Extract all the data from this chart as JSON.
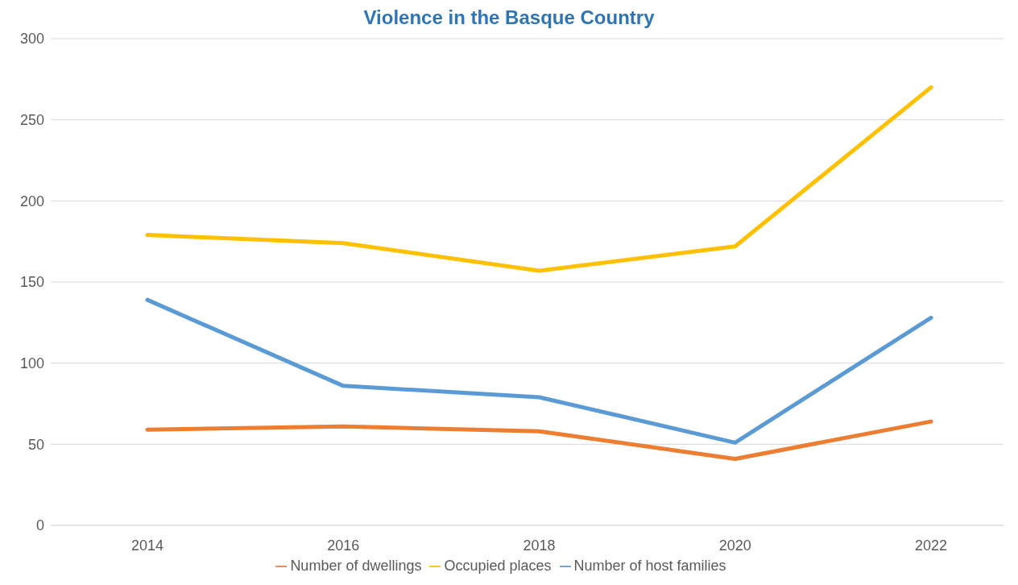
{
  "chart_data": {
    "type": "line",
    "title": "Violence in the Basque Country",
    "categories": [
      "2014",
      "2016",
      "2018",
      "2020",
      "2022"
    ],
    "series": [
      {
        "name": "Number of dwellings",
        "color": "#ed7d31",
        "values": [
          59,
          61,
          58,
          41,
          64
        ]
      },
      {
        "name": "Occupied places",
        "color": "#ffc000",
        "values": [
          179,
          174,
          157,
          172,
          270
        ]
      },
      {
        "name": "Number of host families",
        "color": "#5b9bd5",
        "values": [
          139,
          86,
          79,
          51,
          128
        ]
      }
    ],
    "ylim": [
      0,
      300
    ],
    "yticks": [
      0,
      50,
      100,
      150,
      200,
      250,
      300
    ],
    "grid": "y",
    "legend": "bottom",
    "marker": "none",
    "line_style": "solid"
  }
}
